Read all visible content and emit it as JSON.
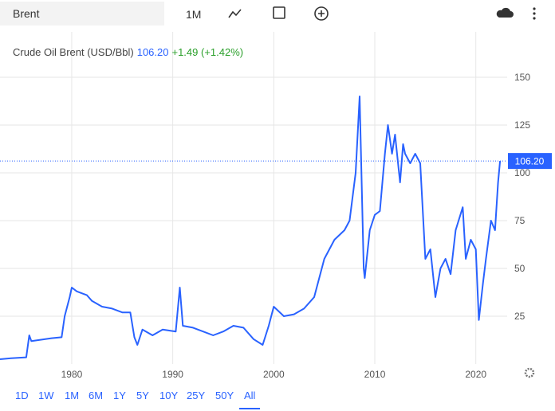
{
  "toolbar": {
    "symbol": "Brent",
    "period": "1M"
  },
  "header": {
    "name": "Crude Oil Brent (USD/Bbl)",
    "price": "106.20",
    "change": "+1.49 (+1.42%)"
  },
  "ranges": {
    "items": [
      "1D",
      "1W",
      "1M",
      "6M",
      "1Y",
      "5Y",
      "10Y",
      "25Y",
      "50Y",
      "All"
    ],
    "selected": "All"
  },
  "chart_data": {
    "type": "line",
    "x": [
      1972.9,
      1974,
      1975.5,
      1975.8,
      1976,
      1978,
      1979,
      1979.3,
      1979.8,
      1980,
      1980.5,
      1981,
      1981.5,
      1982,
      1983,
      1984,
      1985,
      1985.8,
      1986.2,
      1986.5,
      1987,
      1988,
      1989,
      1990.3,
      1990.7,
      1991,
      1992,
      1993,
      1994,
      1995,
      1996,
      1997,
      1998,
      1998.9,
      1999.5,
      2000,
      2001,
      2002,
      2003,
      2004,
      2005,
      2006,
      2007,
      2007.5,
      2008.1,
      2008.5,
      2008.9,
      2009,
      2009.5,
      2010,
      2010.5,
      2011,
      2011.3,
      2011.7,
      2012,
      2012.5,
      2012.8,
      2013,
      2013.5,
      2014,
      2014.5,
      2015,
      2015.5,
      2016,
      2016.5,
      2017,
      2017.5,
      2018,
      2018.7,
      2019,
      2019.5,
      2020,
      2020.3,
      2020.7,
      2021,
      2021.5,
      2021.9,
      2022.2,
      2022.4
    ],
    "series": [
      {
        "name": "Crude Oil Brent",
        "color": "#2962ff",
        "values": [
          2.5,
          3,
          3.5,
          15,
          12,
          13.5,
          14,
          25,
          35,
          40,
          38,
          37,
          36,
          33,
          30,
          29,
          27,
          27,
          14,
          10,
          18,
          15,
          18,
          17,
          40,
          20,
          19,
          17,
          15,
          17,
          20,
          19,
          13,
          10,
          20,
          30,
          25,
          26,
          29,
          35,
          55,
          65,
          70,
          75,
          100,
          140,
          50,
          45,
          70,
          78,
          80,
          110,
          125,
          110,
          120,
          95,
          115,
          110,
          105,
          110,
          105,
          55,
          60,
          35,
          50,
          55,
          47,
          70,
          82,
          55,
          65,
          60,
          23,
          42,
          55,
          75,
          70,
          95,
          106.2
        ]
      }
    ],
    "xlim": [
      1972.9,
      2023.1
    ],
    "ylim": [
      0,
      174
    ],
    "xticks": [
      1980,
      1990,
      2000,
      2010,
      2020
    ],
    "yticks": [
      25,
      50,
      75,
      100,
      125,
      150
    ],
    "grid": true
  }
}
